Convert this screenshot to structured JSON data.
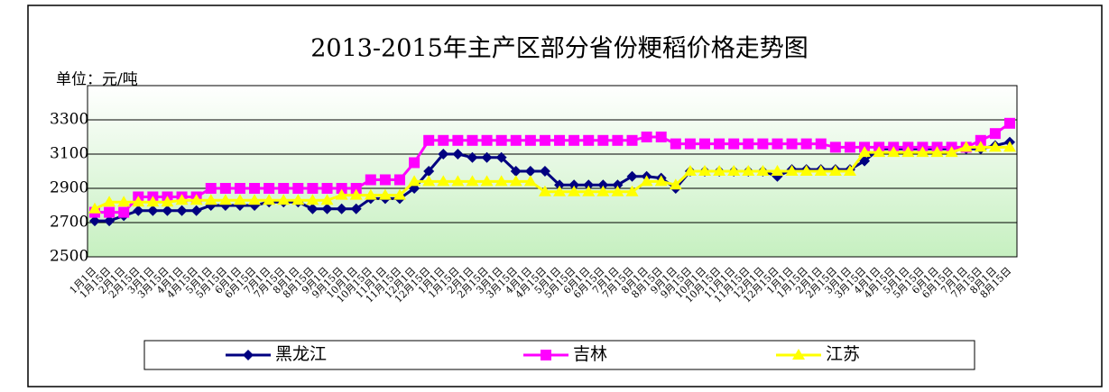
{
  "chart_data": {
    "type": "line",
    "title": "2013-2015年主产区部分省份粳稻价格走势图",
    "unit_label": "单位：元/吨",
    "categories": [
      "1月1日",
      "1月15日",
      "2月1日",
      "2月15日",
      "3月1日",
      "3月15日",
      "4月1日",
      "4月15日",
      "5月1日",
      "5月15日",
      "6月1日",
      "6月15日",
      "7月1日",
      "7月15日",
      "8月1日",
      "8月15日",
      "9月1日",
      "9月15日",
      "10月1日",
      "10月15日",
      "11月1日",
      "11月15日",
      "12月1日",
      "12月15日",
      "1月1日",
      "1月15日",
      "2月1日",
      "2月15日",
      "3月1日",
      "3月15日",
      "4月1日",
      "4月15日",
      "5月1日",
      "5月15日",
      "6月1日",
      "6月15日",
      "7月1日",
      "7月15日",
      "8月1日",
      "8月15日",
      "9月1日",
      "9月15日",
      "10月1日",
      "10月15日",
      "11月1日",
      "11月15日",
      "12月1日",
      "12月15日",
      "1月1日",
      "1月15日",
      "2月1日",
      "2月15日",
      "3月1日",
      "3月15日",
      "4月1日",
      "4月15日",
      "5月1日",
      "5月15日",
      "6月1日",
      "6月15日",
      "7月1日",
      "7月15日",
      "8月1日",
      "8月15日"
    ],
    "series": [
      {
        "name": "黑龙江",
        "color": "#000080",
        "marker": "diamond",
        "values": [
          2710,
          2710,
          2740,
          2770,
          2770,
          2770,
          2770,
          2770,
          2800,
          2800,
          2800,
          2800,
          2820,
          2820,
          2820,
          2780,
          2780,
          2780,
          2780,
          2840,
          2840,
          2840,
          2900,
          3000,
          3100,
          3100,
          3080,
          3080,
          3080,
          3000,
          3000,
          3000,
          2920,
          2920,
          2920,
          2920,
          2920,
          2970,
          2970,
          2960,
          2900,
          3000,
          3000,
          3000,
          3000,
          3000,
          3000,
          2970,
          3010,
          3010,
          3010,
          3010,
          3010,
          3060,
          3130,
          3130,
          3130,
          3130,
          3130,
          3130,
          3130,
          3130,
          3150,
          3170
        ]
      },
      {
        "name": "吉林",
        "color": "#ff00ff",
        "marker": "square",
        "values": [
          2760,
          2760,
          2760,
          2850,
          2850,
          2850,
          2850,
          2850,
          2900,
          2900,
          2900,
          2900,
          2900,
          2900,
          2900,
          2900,
          2900,
          2900,
          2900,
          2950,
          2950,
          2950,
          3050,
          3180,
          3180,
          3180,
          3180,
          3180,
          3180,
          3180,
          3180,
          3180,
          3180,
          3180,
          3180,
          3180,
          3180,
          3180,
          3200,
          3200,
          3160,
          3160,
          3160,
          3160,
          3160,
          3160,
          3160,
          3160,
          3160,
          3160,
          3160,
          3140,
          3140,
          3140,
          3140,
          3140,
          3140,
          3140,
          3140,
          3140,
          3140,
          3180,
          3220,
          3280
        ]
      },
      {
        "name": "江苏",
        "color": "#ffff00",
        "marker": "triangle",
        "values": [
          2780,
          2820,
          2820,
          2820,
          2820,
          2820,
          2830,
          2830,
          2830,
          2830,
          2830,
          2830,
          2830,
          2830,
          2830,
          2830,
          2830,
          2860,
          2860,
          2860,
          2860,
          2860,
          2940,
          2940,
          2940,
          2940,
          2940,
          2940,
          2940,
          2940,
          2940,
          2880,
          2880,
          2880,
          2880,
          2880,
          2880,
          2880,
          2940,
          2940,
          2920,
          3000,
          3000,
          3000,
          3000,
          3000,
          3000,
          3000,
          3000,
          3000,
          3000,
          3000,
          3000,
          3110,
          3110,
          3110,
          3110,
          3110,
          3110,
          3110,
          3140,
          3140,
          3140,
          3140
        ]
      }
    ],
    "ylim": [
      2500,
      3500
    ],
    "yticks": [
      2500,
      2700,
      2900,
      3100,
      3300
    ],
    "grid": true,
    "legend": "bottom"
  }
}
